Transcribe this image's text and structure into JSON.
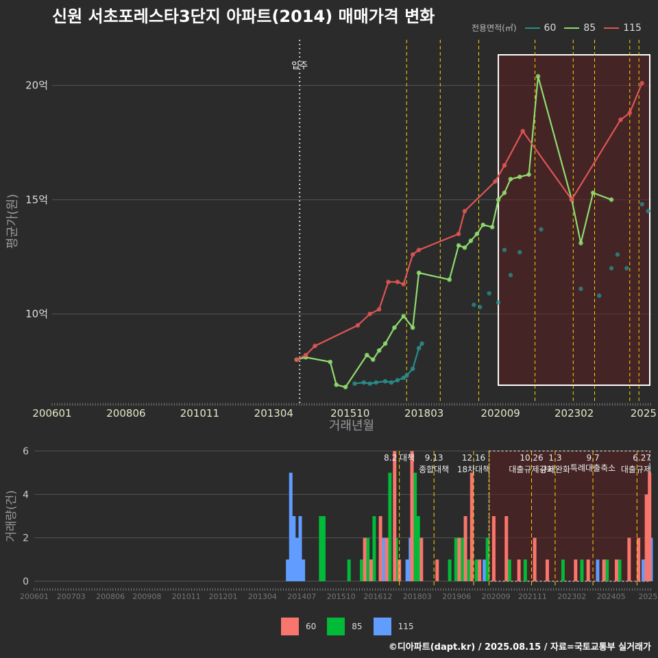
{
  "title": "신원 서초포레스타3단지 아파트(2014) 매매가격 변화",
  "footer": "©디아파트(dapt.kr) / 2025.08.15 / 자료=국토교통부 실거래가",
  "colors": {
    "bg": "#2b2b2b",
    "grid": "#555555",
    "s60": "#2a8c8c",
    "s85": "#8fdd70",
    "s115": "#e05555",
    "b60": "#f8766d",
    "b85": "#00ba38",
    "b115": "#619cff",
    "vline": "#ffd400",
    "box": "#ffffff",
    "shade": "#5a1f1f"
  },
  "legend_top": {
    "title": "전용면적(㎡)",
    "items": [
      "60",
      "85",
      "115"
    ]
  },
  "legend_bottom": {
    "items": [
      "60",
      "85",
      "115"
    ]
  },
  "chart_data": [
    {
      "type": "line",
      "title": "매매가격 변화",
      "xlabel": "거래년월",
      "ylabel": "평균가(원)",
      "x_ticks": [
        "200601",
        "200806",
        "201011",
        "201304",
        "201510",
        "201803",
        "202009",
        "202302",
        "2025"
      ],
      "y_ticks": [
        {
          "v": 10,
          "label": "10억"
        },
        {
          "v": 15,
          "label": "15억"
        },
        {
          "v": 20,
          "label": "20억"
        }
      ],
      "ylim": [
        6.1,
        22.0
      ],
      "xlim": [
        2006.0,
        2025.6
      ],
      "move_in": {
        "x": 2014.1,
        "label": "입주"
      },
      "policy_lines": [
        2017.6,
        2018.7,
        2019.96,
        2021.8,
        2023.05,
        2023.75,
        2024.9,
        2025.2
      ],
      "highlight_box": [
        2020.6,
        2025.9
      ],
      "series": [
        {
          "name": "60",
          "points": [
            [
              2015.9,
              6.95
            ],
            [
              2016.2,
              7.0
            ],
            [
              2016.4,
              6.95
            ],
            [
              2016.6,
              7.0
            ],
            [
              2016.9,
              7.05
            ],
            [
              2017.1,
              7.0
            ],
            [
              2017.3,
              7.1
            ],
            [
              2017.5,
              7.2
            ],
            [
              2017.6,
              7.3
            ],
            [
              2017.8,
              7.6
            ],
            [
              2018.0,
              8.5
            ],
            [
              2018.1,
              8.7
            ]
          ]
        },
        {
          "name": "85",
          "points": [
            [
              2014.0,
              8.0
            ],
            [
              2014.3,
              8.1
            ],
            [
              2015.1,
              7.9
            ],
            [
              2015.3,
              6.9
            ],
            [
              2015.6,
              6.8
            ],
            [
              2016.3,
              8.2
            ],
            [
              2016.5,
              8.0
            ],
            [
              2016.7,
              8.4
            ],
            [
              2016.9,
              8.7
            ],
            [
              2017.2,
              9.4
            ],
            [
              2017.5,
              9.9
            ],
            [
              2017.8,
              9.4
            ],
            [
              2018.0,
              11.8
            ],
            [
              2019.0,
              11.5
            ],
            [
              2019.3,
              13.0
            ],
            [
              2019.5,
              12.9
            ],
            [
              2019.7,
              13.2
            ],
            [
              2019.9,
              13.5
            ],
            [
              2020.1,
              13.9
            ],
            [
              2020.4,
              13.8
            ],
            [
              2020.6,
              15.0
            ],
            [
              2020.8,
              15.3
            ],
            [
              2021.0,
              15.9
            ],
            [
              2021.3,
              16.0
            ],
            [
              2021.6,
              16.1
            ],
            [
              2021.9,
              20.4
            ],
            [
              2023.0,
              15.0
            ],
            [
              2023.3,
              13.1
            ],
            [
              2023.7,
              15.3
            ],
            [
              2024.3,
              15.0
            ]
          ]
        },
        {
          "name": "115",
          "points": [
            [
              2014.0,
              8.0
            ],
            [
              2014.3,
              8.2
            ],
            [
              2014.6,
              8.6
            ],
            [
              2016.0,
              9.5
            ],
            [
              2016.4,
              10.0
            ],
            [
              2016.7,
              10.2
            ],
            [
              2017.0,
              11.4
            ],
            [
              2017.3,
              11.4
            ],
            [
              2017.5,
              11.3
            ],
            [
              2017.8,
              12.6
            ],
            [
              2018.0,
              12.8
            ],
            [
              2019.3,
              13.5
            ],
            [
              2019.5,
              14.5
            ],
            [
              2020.5,
              15.8
            ],
            [
              2020.8,
              16.5
            ],
            [
              2021.4,
              18.0
            ],
            [
              2023.0,
              15.0
            ],
            [
              2024.6,
              18.5
            ],
            [
              2024.9,
              18.8
            ],
            [
              2025.3,
              20.1
            ]
          ]
        }
      ],
      "scatter_60": [
        [
          2019.8,
          10.4
        ],
        [
          2020.0,
          10.3
        ],
        [
          2020.3,
          10.9
        ],
        [
          2020.6,
          10.5
        ],
        [
          2020.8,
          12.8
        ],
        [
          2021.0,
          11.7
        ],
        [
          2021.3,
          12.7
        ],
        [
          2022.0,
          13.7
        ],
        [
          2023.3,
          11.1
        ],
        [
          2023.9,
          10.8
        ],
        [
          2024.3,
          12.0
        ],
        [
          2024.5,
          12.6
        ],
        [
          2024.8,
          12.0
        ],
        [
          2025.3,
          14.8
        ],
        [
          2025.5,
          14.5
        ]
      ]
    },
    {
      "type": "bar",
      "title": "거래량",
      "xlabel": "",
      "ylabel": "거래량(건)",
      "x_ticks": [
        "200601",
        "200703",
        "200806",
        "200908",
        "201011",
        "201201",
        "201304",
        "201407",
        "201510",
        "201612",
        "201803",
        "201906",
        "202009",
        "202111",
        "202302",
        "202405",
        "2025"
      ],
      "y_ticks": [
        0,
        2,
        4,
        6
      ],
      "ylim": [
        0,
        6
      ],
      "policy_lines": [
        {
          "x": 2017.6,
          "label": "8.2 대책"
        },
        {
          "x": 2018.7,
          "label": "9.13\n종합대책"
        },
        {
          "x": 2019.96,
          "label": "12.16\n18차대책"
        },
        {
          "x": 2020.45,
          "label": ""
        },
        {
          "x": 2021.8,
          "label": "10.26\n대출규제강화"
        },
        {
          "x": 2022.55,
          "label": "1.3\n규제완화"
        },
        {
          "x": 2023.75,
          "label": "9.7\n특례대출축소"
        },
        {
          "x": 2025.15,
          "label": "6.27\n대출규제"
        }
      ],
      "bars_115": [
        [
          2014.05,
          1
        ],
        [
          2014.15,
          5
        ],
        [
          2014.25,
          3
        ],
        [
          2014.35,
          2
        ],
        [
          2014.45,
          3
        ],
        [
          2014.55,
          1
        ],
        [
          2017.0,
          1
        ],
        [
          2017.1,
          2
        ],
        [
          2017.85,
          1
        ],
        [
          2017.95,
          2
        ],
        [
          2018.05,
          3
        ],
        [
          2019.5,
          1
        ],
        [
          2020.3,
          1
        ],
        [
          2023.9,
          1
        ],
        [
          2025.35,
          1
        ],
        [
          2025.6,
          2
        ]
      ],
      "bars_85": [
        [
          2015.1,
          3
        ],
        [
          2015.2,
          3
        ],
        [
          2016.0,
          1
        ],
        [
          2016.4,
          1
        ],
        [
          2016.6,
          2
        ],
        [
          2016.8,
          3
        ],
        [
          2017.3,
          5
        ],
        [
          2017.5,
          2
        ],
        [
          2018.1,
          5
        ],
        [
          2018.2,
          3
        ],
        [
          2019.2,
          1
        ],
        [
          2019.4,
          2
        ],
        [
          2019.6,
          2
        ],
        [
          2019.8,
          1
        ],
        [
          2020.05,
          1
        ],
        [
          2020.4,
          2
        ],
        [
          2021.1,
          1
        ],
        [
          2021.6,
          1
        ],
        [
          2022.8,
          1
        ],
        [
          2023.4,
          1
        ],
        [
          2024.2,
          1
        ],
        [
          2024.6,
          1
        ]
      ],
      "bars_60": [
        [
          2016.5,
          2
        ],
        [
          2016.7,
          1
        ],
        [
          2017.0,
          3
        ],
        [
          2017.2,
          2
        ],
        [
          2017.45,
          6
        ],
        [
          2017.6,
          1
        ],
        [
          2018.0,
          6
        ],
        [
          2018.3,
          2
        ],
        [
          2018.8,
          1
        ],
        [
          2019.5,
          2
        ],
        [
          2019.7,
          3
        ],
        [
          2019.9,
          5
        ],
        [
          2020.15,
          1
        ],
        [
          2020.6,
          3
        ],
        [
          2021.0,
          3
        ],
        [
          2021.4,
          1
        ],
        [
          2021.9,
          2
        ],
        [
          2022.3,
          1
        ],
        [
          2023.2,
          1
        ],
        [
          2023.6,
          1
        ],
        [
          2024.1,
          1
        ],
        [
          2024.5,
          1
        ],
        [
          2024.9,
          2
        ],
        [
          2025.2,
          2
        ],
        [
          2025.45,
          4
        ],
        [
          2025.55,
          5
        ]
      ]
    }
  ]
}
